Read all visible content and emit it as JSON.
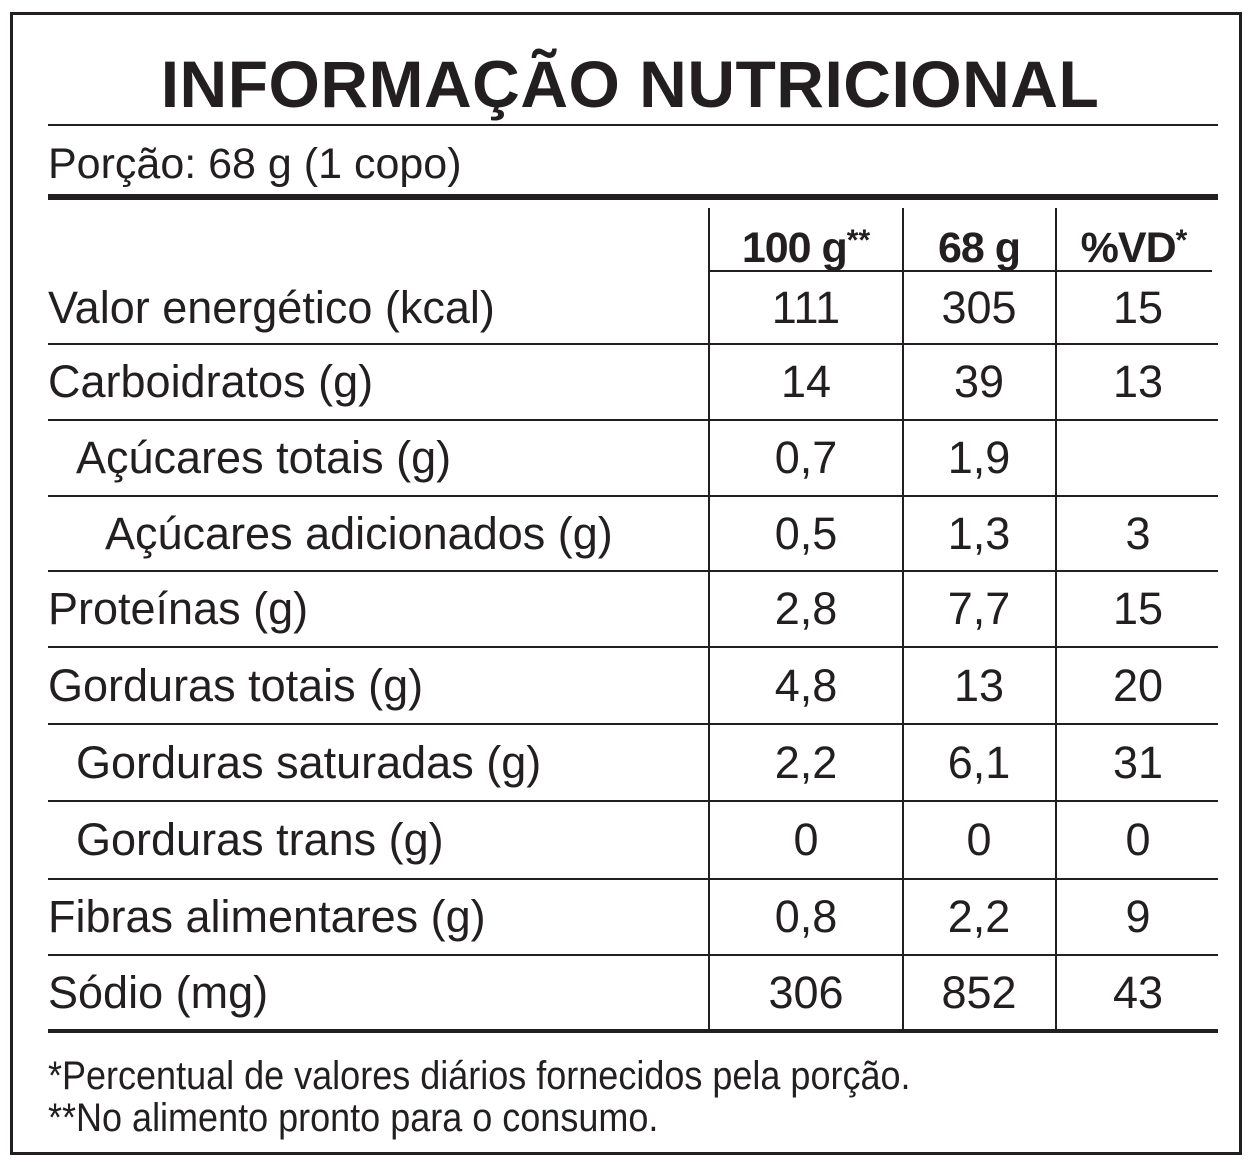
{
  "title": "INFORMAÇÃO NUTRICIONAL",
  "serving": "Porção: 68 g (1 copo)",
  "columns": [
    {
      "label": "100 g",
      "mark": "**"
    },
    {
      "label": "68 g",
      "mark": ""
    },
    {
      "label": "%VD",
      "mark": "*"
    }
  ],
  "rows": [
    {
      "label": "Valor energético (kcal)",
      "indent": 0,
      "v100": "111",
      "vportion": "305",
      "vd": "15"
    },
    {
      "label": "Carboidratos (g)",
      "indent": 0,
      "v100": "14",
      "vportion": "39",
      "vd": "13"
    },
    {
      "label": "Açúcares totais (g)",
      "indent": 1,
      "v100": "0,7",
      "vportion": "1,9",
      "vd": ""
    },
    {
      "label": "Açúcares adicionados (g)",
      "indent": 2,
      "v100": "0,5",
      "vportion": "1,3",
      "vd": "3"
    },
    {
      "label": "Proteínas (g)",
      "indent": 0,
      "v100": "2,8",
      "vportion": "7,7",
      "vd": "15"
    },
    {
      "label": "Gorduras totais (g)",
      "indent": 0,
      "v100": "4,8",
      "vportion": "13",
      "vd": "20"
    },
    {
      "label": "Gorduras saturadas (g)",
      "indent": 1,
      "v100": "2,2",
      "vportion": "6,1",
      "vd": "31"
    },
    {
      "label": "Gorduras trans (g)",
      "indent": 1,
      "v100": "0",
      "vportion": "0",
      "vd": "0"
    },
    {
      "label": "Fibras alimentares (g)",
      "indent": 0,
      "v100": "0,8",
      "vportion": "2,2",
      "vd": "9"
    },
    {
      "label": "Sódio (mg)",
      "indent": 0,
      "v100": "306",
      "vportion": "852",
      "vd": "43"
    }
  ],
  "footnotes": [
    "*Percentual de valores diários fornecidos pela porção.",
    "**No alimento pronto para o consumo."
  ]
}
